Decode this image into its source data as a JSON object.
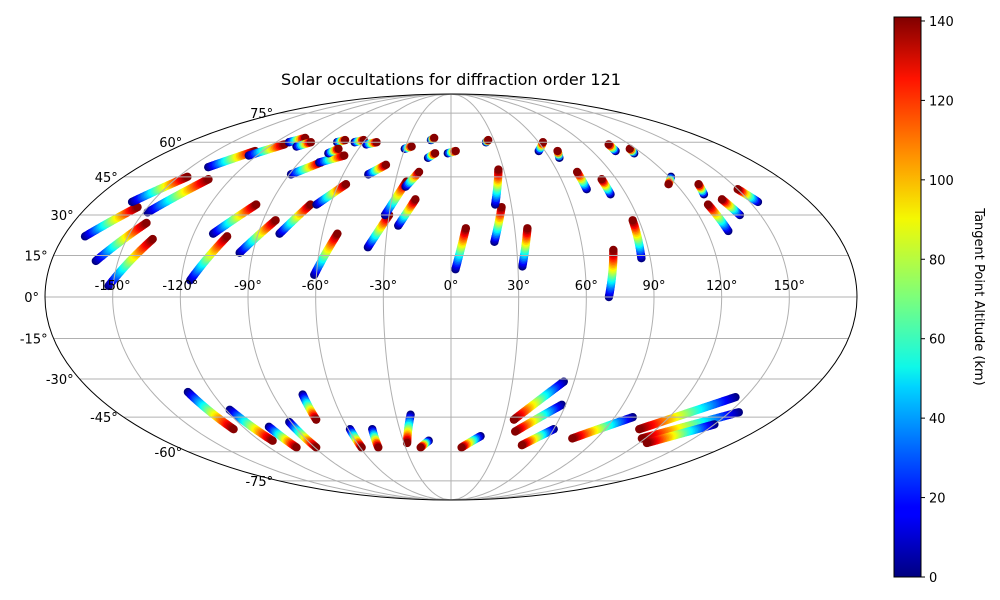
{
  "chart_data": {
    "type": "scatter",
    "projection": "mollweide",
    "title": "Solar occultations for diffraction order 121",
    "xlabel": "",
    "ylabel": "",
    "longitude_ticks": [
      -150,
      -120,
      -90,
      -60,
      -30,
      0,
      30,
      60,
      90,
      120,
      150
    ],
    "longitude_tick_labels": [
      "-150°",
      "-120°",
      "-90°",
      "-60°",
      "-30°",
      "0°",
      "30°",
      "60°",
      "90°",
      "120°",
      "150°"
    ],
    "latitude_ticks": [
      -75,
      -60,
      -45,
      -30,
      -15,
      0,
      15,
      30,
      45,
      60,
      75
    ],
    "latitude_tick_labels": [
      "-75°",
      "-60°",
      "-45°",
      "-30°",
      "-15°",
      "0°",
      "15°",
      "30°",
      "45°",
      "60°",
      "75°"
    ],
    "grid": true,
    "colorbar": {
      "label": "Tangent Point Altitude (km)",
      "colormap": "jet",
      "range": [
        0,
        141
      ],
      "ticks": [
        0,
        20,
        40,
        60,
        80,
        100,
        120,
        140
      ],
      "tick_labels": [
        "0",
        "20",
        "40",
        "60",
        "80",
        "100",
        "120",
        "140"
      ]
    },
    "altitude_range_km": [
      0,
      140
    ],
    "tracks": [
      {
        "lon0": -170,
        "lat0": 22,
        "lon1": -155,
        "lat1": 33
      },
      {
        "lon0": -160,
        "lat0": 35,
        "lon1": -145,
        "lat1": 45
      },
      {
        "lon0": -160,
        "lat0": 13,
        "lon1": -145,
        "lat1": 27
      },
      {
        "lon0": -152,
        "lat0": 4,
        "lon1": -138,
        "lat1": 21
      },
      {
        "lon0": -148,
        "lat0": 31,
        "lon1": -132,
        "lat1": 44
      },
      {
        "lon0": -140,
        "lat0": 49,
        "lon1": -125,
        "lat1": 56
      },
      {
        "lon0": -125,
        "lat0": 54,
        "lon1": -112,
        "lat1": 59
      },
      {
        "lon0": -116,
        "lat0": 6,
        "lon1": -104,
        "lat1": 22
      },
      {
        "lon0": -111,
        "lat0": 23,
        "lon1": -97,
        "lat1": 34
      },
      {
        "lon0": -111,
        "lat0": 60,
        "lon1": -104,
        "lat1": 62
      },
      {
        "lon0": -102,
        "lat0": 58,
        "lon1": -96,
        "lat1": 60
      },
      {
        "lon0": -96,
        "lat0": 16,
        "lon1": -84,
        "lat1": 28
      },
      {
        "lon0": -89,
        "lat0": 46,
        "lon1": -77,
        "lat1": 51
      },
      {
        "lon0": -80,
        "lat0": 23,
        "lon1": -70,
        "lat1": 34
      },
      {
        "lon0": -78,
        "lat0": 51,
        "lon1": -66,
        "lat1": 54
      },
      {
        "lon0": -78,
        "lat0": 60,
        "lon1": -74,
        "lat1": 61
      },
      {
        "lon0": -77,
        "lat0": 55,
        "lon1": -73,
        "lat1": 57
      },
      {
        "lon0": -67,
        "lat0": 34,
        "lon1": -56,
        "lat1": 42
      },
      {
        "lon0": -66,
        "lat0": 60,
        "lon1": -61,
        "lat1": 61
      },
      {
        "lon0": -61,
        "lat0": 8,
        "lon1": -53,
        "lat1": 23
      },
      {
        "lon0": -57,
        "lat0": 59,
        "lon1": -51,
        "lat1": 60
      },
      {
        "lon0": -46,
        "lat0": 46,
        "lon1": -38,
        "lat1": 50
      },
      {
        "lon0": -38,
        "lat0": 18,
        "lon1": -30,
        "lat1": 30
      },
      {
        "lon0": -32,
        "lat0": 30,
        "lon1": -24,
        "lat1": 43
      },
      {
        "lon0": -30,
        "lat0": 57,
        "lon1": -26,
        "lat1": 58
      },
      {
        "lon0": -25,
        "lat0": 26,
        "lon1": -18,
        "lat1": 36
      },
      {
        "lon0": -24,
        "lat0": 41,
        "lon1": -18,
        "lat1": 47
      },
      {
        "lon0": -14,
        "lat0": 61,
        "lon1": -12,
        "lat1": 62
      },
      {
        "lon0": -14,
        "lat0": 53,
        "lon1": -10,
        "lat1": 55
      },
      {
        "lon0": -2,
        "lat0": 55,
        "lon1": 3,
        "lat1": 56
      },
      {
        "lon0": 2,
        "lat0": 10,
        "lon1": 7,
        "lat1": 25
      },
      {
        "lon0": 20,
        "lat0": 20,
        "lon1": 25,
        "lat1": 33
      },
      {
        "lon0": 22,
        "lat0": 34,
        "lon1": 27,
        "lat1": 48
      },
      {
        "lon0": 24,
        "lat0": 60,
        "lon1": 26,
        "lat1": 61
      },
      {
        "lon0": 32,
        "lat0": 11,
        "lon1": 36,
        "lat1": 25
      },
      {
        "lon0": 56,
        "lat0": 56,
        "lon1": 63,
        "lat1": 60
      },
      {
        "lon0": 66,
        "lat0": 53,
        "lon1": 68,
        "lat1": 56
      },
      {
        "lon0": 70,
        "lat0": 0,
        "lon1": 74,
        "lat1": 17
      },
      {
        "lon0": 71,
        "lat0": 40,
        "lon1": 71,
        "lat1": 47
      },
      {
        "lon0": 82,
        "lat0": 38,
        "lon1": 82,
        "lat1": 44
      },
      {
        "lon0": 86,
        "lat0": 14,
        "lon1": 87,
        "lat1": 28
      },
      {
        "lon0": 105,
        "lat0": 56,
        "lon1": 106,
        "lat1": 59
      },
      {
        "lon0": 115,
        "lat0": 55,
        "lon1": 116,
        "lat1": 57
      },
      {
        "lon0": 121,
        "lat0": 45,
        "lon1": 116,
        "lat1": 42
      },
      {
        "lon0": 130,
        "lat0": 24,
        "lon1": 128,
        "lat1": 34
      },
      {
        "lon0": 130,
        "lat0": 38,
        "lon1": 132,
        "lat1": 42
      },
      {
        "lon0": 140,
        "lat0": 30,
        "lon1": 137,
        "lat1": 36
      },
      {
        "lon0": 154,
        "lat0": 35,
        "lon1": 150,
        "lat1": 40
      },
      {
        "lon0": -132,
        "lat0": -35,
        "lon1": -127,
        "lat1": -50
      },
      {
        "lon0": -118,
        "lat0": -42,
        "lon1": -112,
        "lat1": -55
      },
      {
        "lon0": -105,
        "lat0": -49,
        "lon1": -102,
        "lat1": -58
      },
      {
        "lon0": -91,
        "lat0": -47,
        "lon1": -89,
        "lat1": -58
      },
      {
        "lon0": -75,
        "lat0": -36,
        "lon1": -75,
        "lat1": -46
      },
      {
        "lon0": -59,
        "lat0": -50,
        "lon1": -59,
        "lat1": -58
      },
      {
        "lon0": -46,
        "lat0": -50,
        "lon1": -48,
        "lat1": -58
      },
      {
        "lon0": -22,
        "lat0": -44,
        "lon1": -28,
        "lat1": -56
      },
      {
        "lon0": -14,
        "lat0": -55,
        "lon1": -20,
        "lat1": -58
      },
      {
        "lon0": 18,
        "lat0": -53,
        "lon1": 7,
        "lat1": -58
      },
      {
        "lon0": 55,
        "lat0": -31,
        "lon1": 35,
        "lat1": -46
      },
      {
        "lon0": 58,
        "lat0": -40,
        "lon1": 38,
        "lat1": -51
      },
      {
        "lon0": 60,
        "lat0": -50,
        "lon1": 46,
        "lat1": -57
      },
      {
        "lon0": 100,
        "lat0": -45,
        "lon1": 75,
        "lat1": -54
      },
      {
        "lon0": 145,
        "lat0": -37,
        "lon1": 110,
        "lat1": -50
      },
      {
        "lon0": 155,
        "lat0": -43,
        "lon1": 118,
        "lat1": -54
      },
      {
        "lon0": 150,
        "lat0": -48,
        "lon1": 125,
        "lat1": -56
      }
    ]
  }
}
